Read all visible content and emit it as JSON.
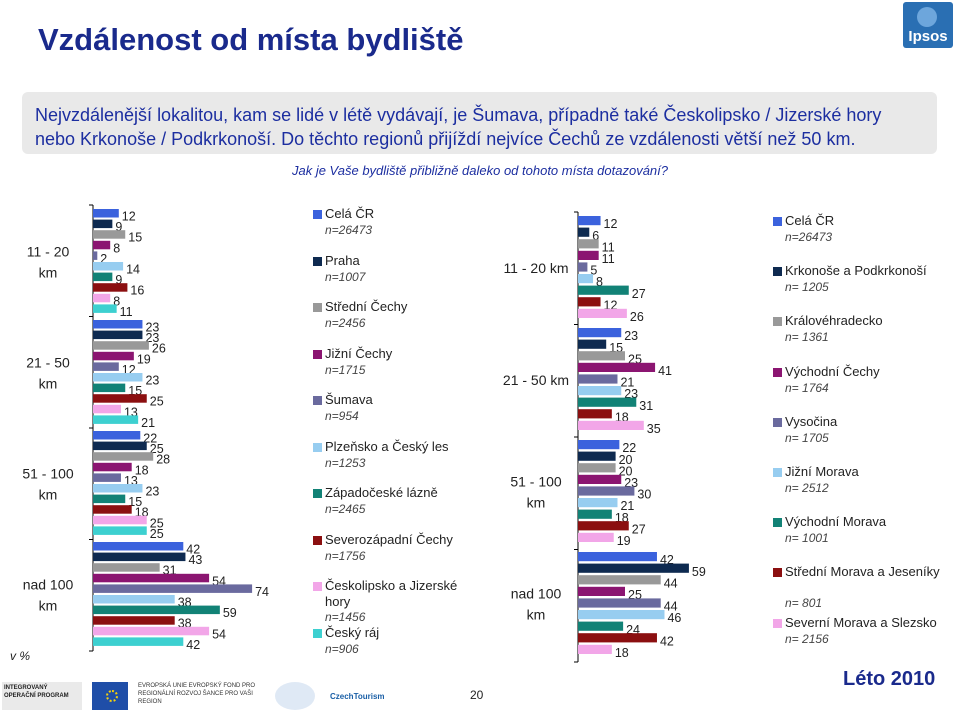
{
  "header": {
    "title": "Vzdálenost od místa bydliště",
    "logo_text": "Ipsos",
    "intro_line1": "Nejvzdálenější lokalitou, kam se lidé v létě vydávají, je Šumava, případně také Českolipsko / Jizerské hory",
    "intro_line2": "nebo Krkonoše / Podkrkonoší. Do těchto regionů přijíždí nejvíce Čechů ze vzdálenosti větší než 50 km.",
    "question": "Jak je Vaše bydliště přibližně daleko od tohoto místa dotazování?"
  },
  "unit_label": "v %",
  "page_number": "20",
  "season": "Léto 2010",
  "footer": {
    "logo1": "INTEGROVANÝ OPERAČNÍ PROGRAM",
    "logo3": "EVROPSKÁ UNIE EVROPSKÝ FOND PRO REGIONÁLNÍ ROZVOJ ŠANCE PRO VAŠI REGION",
    "logo5": "CzechTourism"
  },
  "colors": {
    "cela_cr": "#3b62dd",
    "dark_navy": "#0e2a50",
    "grey": "#999999",
    "purple": "#8b1571",
    "slate": "#6a6a9e",
    "light_blue": "#97cdf0",
    "teal": "#128276",
    "dark_red": "#8b0f10",
    "pink": "#f2a6e8",
    "cyan": "#3dd0d0"
  },
  "chart_data": [
    {
      "type": "bar",
      "orientation": "horizontal",
      "categories": [
        "11 - 20 km",
        "21 - 50 km",
        "51 - 100 km",
        "nad 100 km"
      ],
      "series": [
        {
          "name": "Celá ČR",
          "n": "n=26473",
          "color": "#3b62dd",
          "values": [
            12,
            23,
            22,
            42
          ]
        },
        {
          "name": "Praha",
          "n": "n=1007",
          "color": "#0e2a50",
          "values": [
            9,
            23,
            25,
            43
          ]
        },
        {
          "name": "Střední Čechy",
          "n": "n=2456",
          "color": "#999999",
          "values": [
            15,
            26,
            28,
            31
          ]
        },
        {
          "name": "Jižní Čechy",
          "n": "n=1715",
          "color": "#8b1571",
          "values": [
            8,
            19,
            18,
            54
          ]
        },
        {
          "name": "Šumava",
          "n": "n=954",
          "color": "#6a6a9e",
          "values": [
            2,
            12,
            13,
            74
          ]
        },
        {
          "name": "Plzeňsko a Český les",
          "n": "n=1253",
          "color": "#97cdf0",
          "values": [
            14,
            23,
            23,
            38
          ]
        },
        {
          "name": "Západočeské lázně",
          "n": "n=2465",
          "color": "#128276",
          "values": [
            9,
            15,
            15,
            59
          ]
        },
        {
          "name": "Severozápadní Čechy",
          "n": "n=1756",
          "color": "#8b0f10",
          "values": [
            16,
            25,
            18,
            38
          ]
        },
        {
          "name": "Českolipsko a Jizerské hory",
          "n": "n=1456",
          "color": "#f2a6e8",
          "values": [
            8,
            13,
            25,
            54
          ]
        },
        {
          "name": "Český ráj",
          "n": "n=906",
          "color": "#3dd0d0",
          "values": [
            11,
            21,
            25,
            42
          ]
        }
      ]
    },
    {
      "type": "bar",
      "orientation": "horizontal",
      "categories": [
        "11 - 20 km",
        "21 - 50 km",
        "51 - 100 km",
        "nad 100 km"
      ],
      "series": [
        {
          "name": "Celá ČR",
          "n": "n=26473",
          "color": "#3b62dd",
          "values": [
            12,
            23,
            22,
            42
          ]
        },
        {
          "name": "Krkonoše a Podkrkonoší",
          "n": "n= 1205",
          "color": "#0e2a50",
          "values": [
            6,
            15,
            20,
            59
          ]
        },
        {
          "name": "Královéhradecko",
          "n": "n= 1361",
          "color": "#999999",
          "values": [
            11,
            25,
            20,
            44
          ]
        },
        {
          "name": "Východní Čechy",
          "n": "n= 1764",
          "color": "#8b1571",
          "values": [
            11,
            41,
            23,
            25
          ]
        },
        {
          "name": "Vysočina",
          "n": "n= 1705",
          "color": "#6a6a9e",
          "values": [
            5,
            21,
            30,
            44
          ]
        },
        {
          "name": "Jižní Morava",
          "n": "n= 2512",
          "color": "#97cdf0",
          "values": [
            8,
            23,
            21,
            46
          ]
        },
        {
          "name": "Východní Morava",
          "n": "n= 1001",
          "color": "#128276",
          "values": [
            27,
            31,
            18,
            24
          ]
        },
        {
          "name": "Střední Morava a Jeseníky",
          "n": "n= 801",
          "color": "#8b0f10",
          "values": [
            12,
            18,
            27,
            42
          ]
        },
        {
          "name": "Severní Morava a Slezsko",
          "n": "n= 2156",
          "color": "#f2a6e8",
          "values": [
            26,
            35,
            19,
            18
          ]
        }
      ]
    }
  ]
}
